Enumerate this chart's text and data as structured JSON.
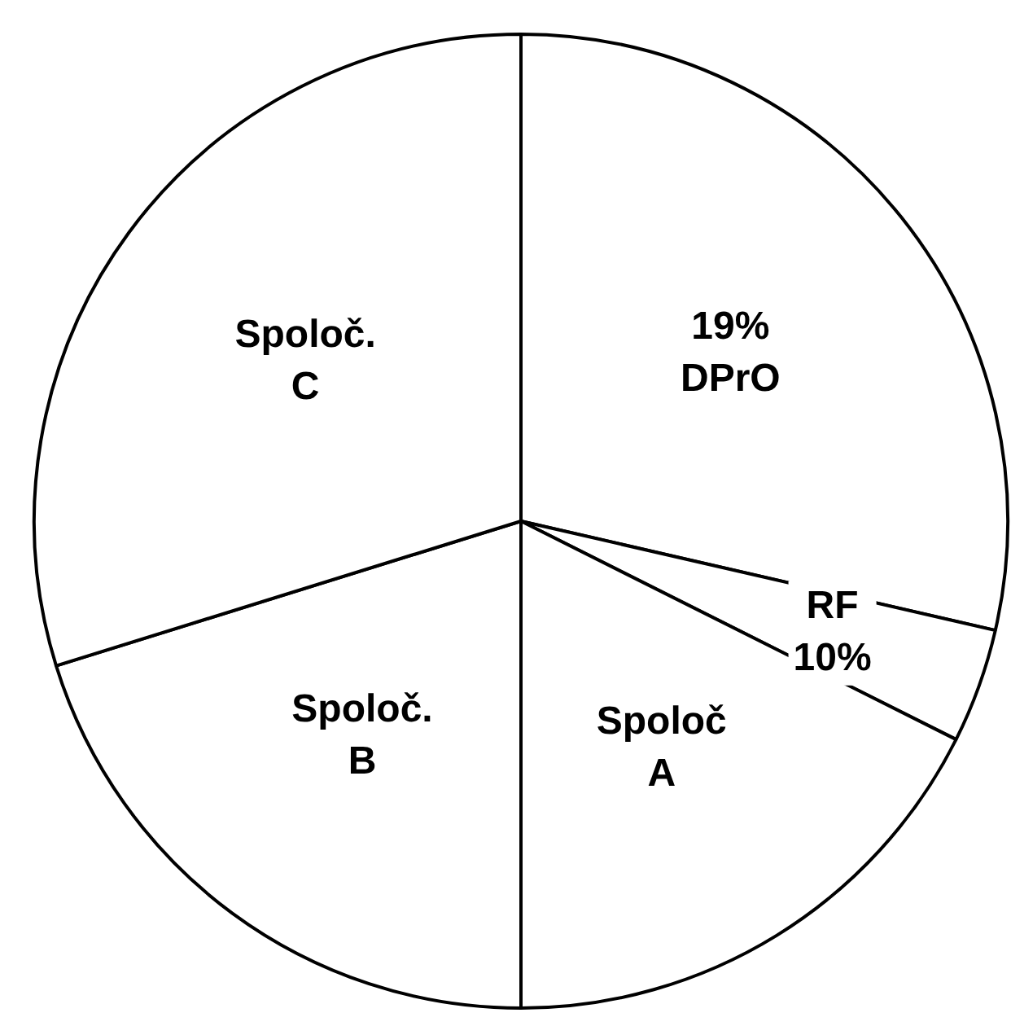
{
  "chart_data": {
    "type": "pie",
    "categories": [
      "19%\nDPrO",
      "RF\n10%",
      "Spoloč\nA",
      "Spoloč.\nB",
      "Spoloč.\nC"
    ],
    "values": [
      28.6,
      3.8,
      17.6,
      20.2,
      29.8
    ],
    "colors": [
      "#ffffff",
      "#ffffff",
      "#ffffff",
      "#ffffff",
      "#ffffff"
    ],
    "legend": false
  }
}
